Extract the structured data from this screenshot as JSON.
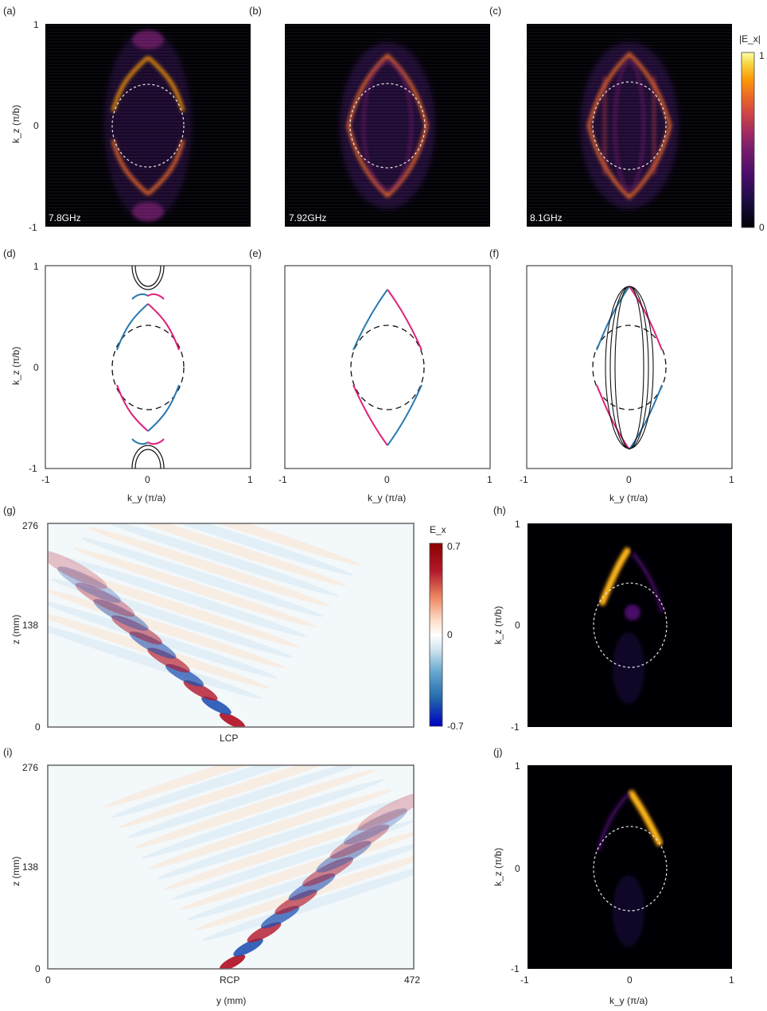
{
  "panel_labels": [
    "(a)",
    "(b)",
    "(c)",
    "(d)",
    "(e)",
    "(f)",
    "(g)",
    "(h)",
    "(i)",
    "(j)"
  ],
  "colors": {
    "contour_pink": "#e0207a",
    "contour_blue": "#2a78b0",
    "colormap_inferno": [
      "#000004",
      "#1b0c41",
      "#4a0c6b",
      "#781c6d",
      "#a52c60",
      "#cf4446",
      "#ed6925",
      "#fb9b06",
      "#f7d13d",
      "#fcffa4"
    ],
    "colormap_rdbu": [
      "#0000c0",
      "#2166ac",
      "#67a9cf",
      "#d1e5f0",
      "#ffffff",
      "#fddbc7",
      "#ef8a62",
      "#b2182b",
      "#8b0000"
    ]
  },
  "chart_data": [
    {
      "panel": "(a)",
      "type": "heatmap",
      "annotation": "7.8GHz",
      "ylabel": "k_z (π/b)",
      "yticks": [
        "1",
        "0",
        "-1"
      ],
      "xlim": [
        -1,
        1
      ],
      "ylim": [
        -1,
        1
      ],
      "grid": false
    },
    {
      "panel": "(b)",
      "type": "heatmap",
      "annotation": "7.92GHz",
      "xlim": [
        -1,
        1
      ],
      "ylim": [
        -1,
        1
      ],
      "grid": false
    },
    {
      "panel": "(c)",
      "type": "heatmap",
      "annotation": "8.1GHz",
      "xlim": [
        -1,
        1
      ],
      "ylim": [
        -1,
        1
      ],
      "grid": false,
      "colorbar": {
        "label": "|E_x|",
        "ticks": [
          "1",
          "0"
        ],
        "range": [
          0,
          1
        ]
      }
    },
    {
      "panel": "(d)",
      "type": "line",
      "xlabel": "k_y (π/a)",
      "ylabel": "k_z (π/b)",
      "xticks": [
        "-1",
        "0",
        "1"
      ],
      "yticks": [
        "1",
        "0",
        "-1"
      ],
      "xlim": [
        -1,
        1
      ],
      "ylim": [
        -1,
        1
      ],
      "grid": false
    },
    {
      "panel": "(e)",
      "type": "line",
      "xlabel": "k_y (π/a)",
      "xticks": [
        "-1",
        "0",
        "1"
      ],
      "xlim": [
        -1,
        1
      ],
      "ylim": [
        -1,
        1
      ],
      "grid": false
    },
    {
      "panel": "(f)",
      "type": "line",
      "xlabel": "k_y (π/a)",
      "xticks": [
        "-1",
        "0",
        "1"
      ],
      "xlim": [
        -1,
        1
      ],
      "ylim": [
        -1,
        1
      ],
      "grid": false
    },
    {
      "panel": "(g)",
      "type": "heatmap",
      "annotation": "LCP",
      "ylabel": "z (mm)",
      "yticks": [
        "276",
        "138",
        "0"
      ],
      "ylim": [
        0,
        276
      ],
      "xlim": [
        0,
        472
      ],
      "colorbar": {
        "label": "E_x",
        "ticks": [
          "0.7",
          "0",
          "-0.7"
        ],
        "range": [
          -0.7,
          0.7
        ]
      }
    },
    {
      "panel": "(h)",
      "type": "heatmap",
      "ylabel": "k_z (π/b)",
      "yticks": [
        "1",
        "0",
        "-1"
      ],
      "xlim": [
        -1,
        1
      ],
      "ylim": [
        -1,
        1
      ]
    },
    {
      "panel": "(i)",
      "type": "heatmap",
      "annotation": "RCP",
      "xlabel": "y (mm)",
      "ylabel": "z (mm)",
      "xticks": [
        "0",
        "472"
      ],
      "yticks": [
        "276",
        "138",
        "0"
      ],
      "xlim": [
        0,
        472
      ],
      "ylim": [
        0,
        276
      ]
    },
    {
      "panel": "(j)",
      "type": "heatmap",
      "xlabel": "k_y (π/a)",
      "ylabel": "k_z (π/b)",
      "xticks": [
        "-1",
        "0",
        "1"
      ],
      "yticks": [
        "1",
        "0",
        "-1"
      ],
      "xlim": [
        -1,
        1
      ],
      "ylim": [
        -1,
        1
      ]
    }
  ]
}
